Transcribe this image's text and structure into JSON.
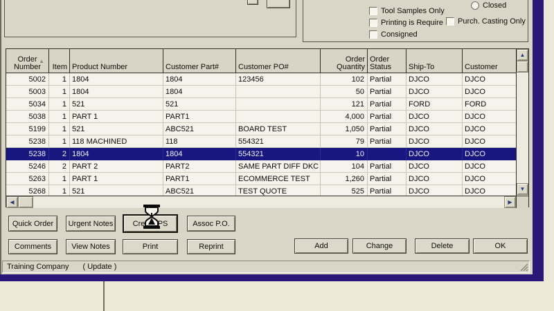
{
  "filters": {
    "closed": "Closed",
    "tool_samples": "Tool Samples Only",
    "printing": "Printing is Require",
    "purch_casting": "Purch. Casting Only",
    "consigned": "Consigned"
  },
  "grid": {
    "columns": [
      "Order Number",
      "Item",
      "Product Number",
      "Customer Part#",
      "Customer PO#",
      "Order Quantity",
      "Order Status",
      "Ship-To",
      "Customer"
    ],
    "selected_index": 6,
    "rows": [
      [
        "5002",
        "1",
        "1804",
        "1804",
        "123456",
        "102",
        "Partial",
        "DJCO",
        "DJCO"
      ],
      [
        "5003",
        "1",
        "1804",
        "1804",
        "",
        "50",
        "Partial",
        "DJCO",
        "DJCO"
      ],
      [
        "5034",
        "1",
        "521",
        "521",
        "",
        "121",
        "Partial",
        "FORD",
        "FORD"
      ],
      [
        "5038",
        "1",
        "PART 1",
        "PART1",
        "",
        "4,000",
        "Partial",
        "DJCO",
        "DJCO"
      ],
      [
        "5199",
        "1",
        "521",
        "ABC521",
        "BOARD TEST",
        "1,050",
        "Partial",
        "DJCO",
        "DJCO"
      ],
      [
        "5238",
        "1",
        "118 MACHINED",
        "118",
        "554321",
        "79",
        "Partial",
        "DJCO",
        "DJCO"
      ],
      [
        "5238",
        "2",
        "1804",
        "1804",
        "554321",
        "10",
        "",
        "DJCO",
        "DJCO"
      ],
      [
        "5246",
        "2",
        "PART 2",
        "PART2",
        "SAME PART DIFF DKC",
        "104",
        "Partial",
        "DJCO",
        "DJCO"
      ],
      [
        "5263",
        "1",
        "PART 1",
        "PART1",
        "ECOMMERCE TEST",
        "1,260",
        "Partial",
        "DJCO",
        "DJCO"
      ],
      [
        "5268",
        "1",
        "521",
        "ABC521",
        "TEST QUOTE",
        "525",
        "Partial",
        "DJCO",
        "DJCO"
      ]
    ]
  },
  "actions": {
    "quick_order": "Quick Order",
    "urgent_notes": "Urgent Notes",
    "create_ps": "Create PS",
    "assoc_po": "Assoc P.O.",
    "comments": "Comments",
    "view_notes": "View Notes",
    "print": "Print",
    "reprint": "Reprint",
    "add": "Add",
    "change": "Change",
    "delete": "Delete",
    "ok": "OK"
  },
  "statusbar": {
    "company": "Training Company",
    "mode": "( Update )"
  },
  "icons": {
    "sort_up": "▲",
    "scroll_up": "▲",
    "scroll_down": "▼",
    "scroll_left": "◀",
    "scroll_right": "▶"
  },
  "colors": {
    "selection": "#17177f",
    "window_border": "#2a1878"
  }
}
